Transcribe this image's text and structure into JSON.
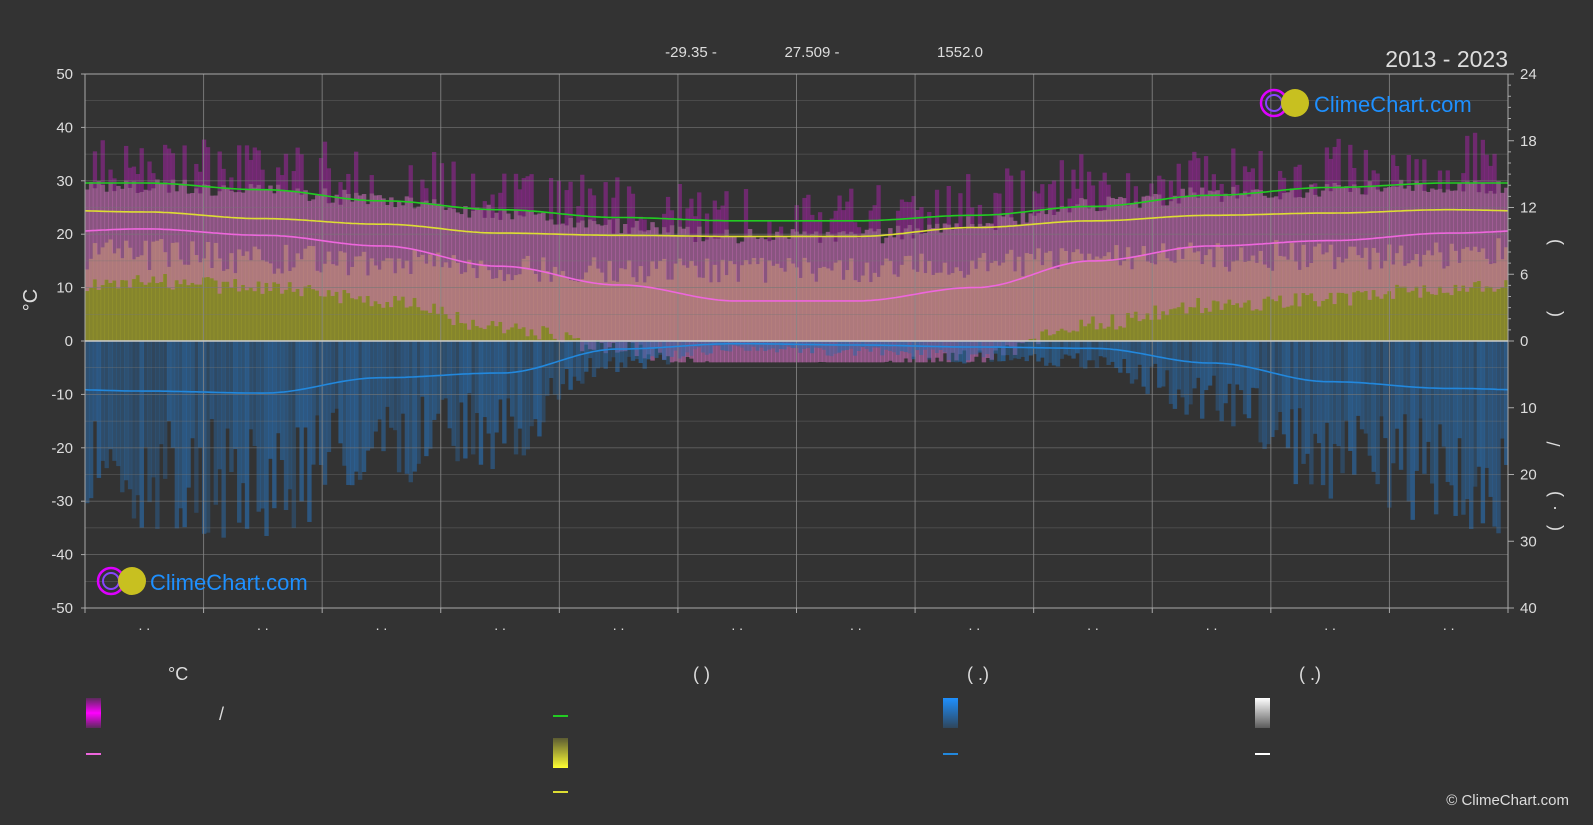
{
  "header": {
    "period": "2013 - 2023",
    "coord_lat": "-29.35 -",
    "coord_lon": "27.509 -",
    "elevation": "1552.0"
  },
  "brand": {
    "name": "ClimeChart.com",
    "copyright": "© ClimeChart.com"
  },
  "colors": {
    "background": "#333333",
    "daylight": "#22cc22",
    "sunshine": "#dddd33",
    "temp_avg": "#ee66dd",
    "precip": "#2288dd",
    "brand_blue": "#1e90ff",
    "brand_magenta": "#dd00ff"
  },
  "legend": {
    "temp_col_title": "°C",
    "sun_col_title": "(          )",
    "rain_col_title": "(   .)",
    "snow_col_title": "(   .)",
    "temp_range_sep": "/"
  },
  "chart_data": {
    "type": "area",
    "title": "",
    "x": [
      "",
      "",
      "",
      "",
      "",
      "",
      "",
      "",
      "",
      "",
      "",
      ""
    ],
    "x_tick_labels": [
      ". .",
      ". .",
      ". .",
      ". .",
      ". .",
      ". .",
      ". .",
      ". .",
      ". .",
      ". .",
      ". .",
      ". ."
    ],
    "ylabel_left": "°C",
    "ylim_left": [
      -50,
      50
    ],
    "yticks_left": [
      50,
      40,
      30,
      20,
      10,
      0,
      -10,
      -20,
      -30,
      -40,
      -50
    ],
    "ylim_right_top": [
      0,
      24
    ],
    "yticks_right_top": [
      24,
      18,
      12,
      6,
      0
    ],
    "ylim_right_bottom": [
      0,
      40
    ],
    "yticks_right_bottom": [
      10,
      20,
      30,
      40
    ],
    "right_axis_glyphs": [
      ")",
      "(",
      "/",
      ")",
      "·",
      "("
    ],
    "grid": true,
    "series": [
      {
        "key": "daylight",
        "axis": "right_top",
        "values": [
          14.2,
          13.6,
          12.6,
          11.8,
          11.1,
          10.8,
          10.8,
          11.3,
          12.1,
          13.1,
          13.8,
          14.2
        ]
      },
      {
        "key": "sunshine",
        "axis": "right_top",
        "values": [
          11.6,
          11.0,
          10.5,
          9.7,
          9.5,
          9.4,
          9.4,
          10.2,
          10.8,
          11.3,
          11.5,
          11.8
        ]
      },
      {
        "key": "temp_avg",
        "axis": "left",
        "values": [
          21.0,
          19.8,
          17.8,
          14.0,
          10.5,
          7.5,
          7.5,
          10.0,
          15.0,
          17.8,
          18.8,
          20.2
        ]
      },
      {
        "key": "temp_max",
        "axis": "left",
        "values": [
          27.5,
          26.5,
          25.0,
          22.5,
          20.0,
          18.0,
          18.0,
          20.5,
          24.0,
          26.0,
          26.8,
          27.5
        ]
      },
      {
        "key": "precip",
        "axis": "right_bottom",
        "values": [
          7.5,
          7.8,
          5.5,
          4.8,
          1.2,
          0.4,
          0.6,
          0.9,
          1.1,
          3.3,
          6.1,
          7.1
        ]
      }
    ]
  }
}
